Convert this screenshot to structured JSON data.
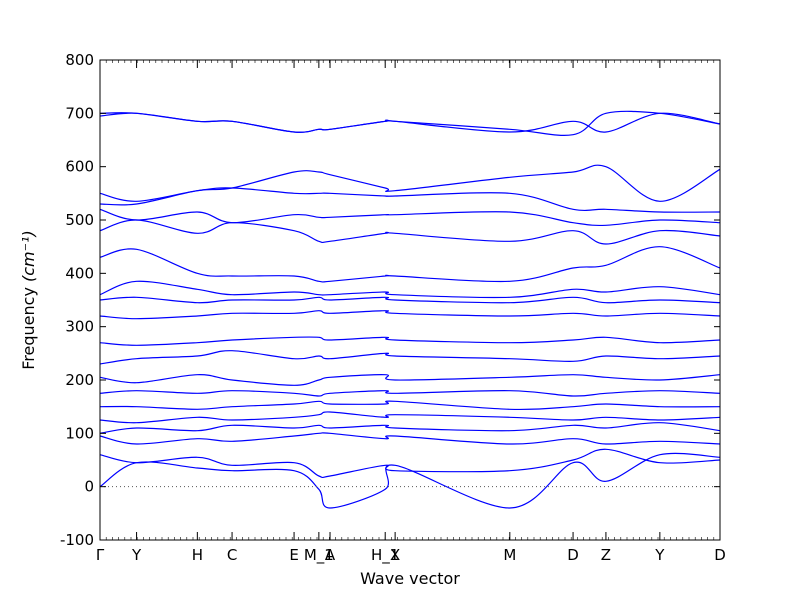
{
  "chart_data": {
    "type": "line",
    "title": "",
    "xlabel": "Wave vector",
    "ylabel": "Frequency",
    "ylabel_unit": "(cm⁻¹)",
    "ylim": [
      -100,
      800
    ],
    "yticks": [
      -100,
      0,
      100,
      200,
      300,
      400,
      500,
      600,
      700,
      800
    ],
    "xticks": [
      {
        "label": "Γ",
        "x": 0.0
      },
      {
        "label": "Y",
        "x": 0.059
      },
      {
        "label": "H",
        "x": 0.157
      },
      {
        "label": "C",
        "x": 0.213
      },
      {
        "label": "E",
        "x": 0.313
      },
      {
        "label": "M_1",
        "x": 0.353
      },
      {
        "label": "A",
        "x": 0.371
      },
      {
        "label": "H_1",
        "x": 0.46
      },
      {
        "label": "X",
        "x": 0.476
      },
      {
        "label": "M",
        "x": 0.661
      },
      {
        "label": "D",
        "x": 0.763
      },
      {
        "label": "Z",
        "x": 0.816
      },
      {
        "label": "Y",
        "x": 0.903
      },
      {
        "label": "D",
        "x": 1.0
      }
    ],
    "zero_line": 0,
    "grid": false,
    "line_color": "#0000ff",
    "band_color": "#0000ff",
    "x": [
      0.0,
      0.059,
      0.157,
      0.213,
      0.313,
      0.353,
      0.371,
      0.46,
      0.476,
      0.661,
      0.763,
      0.816,
      0.903,
      1.0
    ],
    "series": [
      {
        "values": [
          0,
          45,
          35,
          30,
          30,
          -5,
          -40,
          -5,
          40,
          -40,
          45,
          10,
          60,
          55
        ]
      },
      {
        "values": [
          60,
          45,
          55,
          40,
          45,
          20,
          20,
          40,
          30,
          30,
          50,
          70,
          45,
          50
        ]
      },
      {
        "values": [
          95,
          80,
          90,
          85,
          95,
          100,
          100,
          90,
          95,
          80,
          90,
          80,
          85,
          80
        ]
      },
      {
        "values": [
          100,
          110,
          105,
          115,
          110,
          115,
          110,
          115,
          110,
          105,
          115,
          110,
          120,
          105
        ]
      },
      {
        "values": [
          125,
          120,
          130,
          125,
          130,
          135,
          140,
          130,
          135,
          130,
          125,
          130,
          125,
          130
        ]
      },
      {
        "values": [
          150,
          150,
          145,
          150,
          155,
          160,
          155,
          155,
          160,
          145,
          150,
          155,
          150,
          150
        ]
      },
      {
        "values": [
          175,
          180,
          175,
          180,
          175,
          170,
          175,
          180,
          175,
          180,
          170,
          175,
          180,
          175
        ]
      },
      {
        "values": [
          205,
          195,
          210,
          200,
          190,
          200,
          205,
          210,
          200,
          205,
          210,
          205,
          200,
          210
        ]
      },
      {
        "values": [
          230,
          240,
          245,
          255,
          240,
          245,
          240,
          250,
          245,
          240,
          235,
          245,
          240,
          245
        ]
      },
      {
        "values": [
          270,
          265,
          270,
          275,
          280,
          280,
          275,
          280,
          275,
          270,
          275,
          280,
          270,
          275
        ]
      },
      {
        "values": [
          320,
          315,
          320,
          325,
          325,
          330,
          325,
          330,
          325,
          320,
          325,
          320,
          325,
          320
        ]
      },
      {
        "values": [
          350,
          355,
          345,
          350,
          350,
          355,
          350,
          355,
          350,
          345,
          355,
          345,
          350,
          345
        ]
      },
      {
        "values": [
          360,
          385,
          370,
          360,
          365,
          360,
          360,
          365,
          360,
          355,
          370,
          365,
          375,
          360
        ]
      },
      {
        "values": [
          430,
          445,
          400,
          395,
          395,
          385,
          385,
          395,
          395,
          385,
          410,
          415,
          450,
          410
        ]
      },
      {
        "values": [
          480,
          500,
          475,
          495,
          480,
          460,
          460,
          475,
          475,
          460,
          480,
          455,
          480,
          470
        ]
      },
      {
        "values": [
          520,
          500,
          515,
          495,
          510,
          505,
          505,
          510,
          510,
          515,
          495,
          490,
          500,
          495
        ]
      },
      {
        "values": [
          550,
          535,
          555,
          560,
          550,
          550,
          550,
          545,
          545,
          550,
          520,
          520,
          515,
          515
        ]
      },
      {
        "values": [
          530,
          530,
          555,
          560,
          590,
          590,
          585,
          560,
          555,
          580,
          590,
          600,
          535,
          595
        ]
      },
      {
        "values": [
          700,
          700,
          685,
          685,
          665,
          670,
          670,
          685,
          685,
          665,
          685,
          665,
          700,
          680
        ]
      },
      {
        "values": [
          695,
          700,
          685,
          685,
          665,
          670,
          670,
          685,
          685,
          670,
          660,
          700,
          700,
          680
        ]
      }
    ]
  }
}
